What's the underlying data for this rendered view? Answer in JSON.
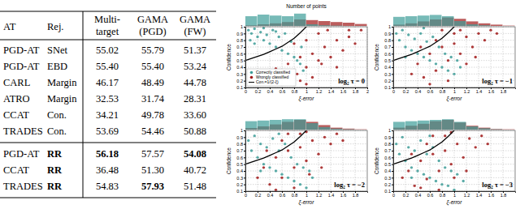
{
  "table": {
    "header": [
      [
        "AT"
      ],
      [
        "Rej."
      ],
      [
        "Multi-",
        "target"
      ],
      [
        "GAMA",
        "(PGD)"
      ],
      [
        "GAMA",
        "(FW)"
      ]
    ],
    "sections": [
      [
        [
          "PGD-AT",
          "SNet",
          "55.02",
          "55.79",
          "51.37"
        ],
        [
          "PGD-AT",
          "EBD",
          "55.40",
          "55.40",
          "53.24"
        ],
        [
          "CARL",
          "Margin",
          "46.17",
          "48.49",
          "44.78"
        ],
        [
          "ATRO",
          "Margin",
          "32.53",
          "31.74",
          "28.31"
        ],
        [
          "CCAT",
          "Con.",
          "34.21",
          "49.78",
          "33.60"
        ],
        [
          "TRADES",
          "Con.",
          "53.69",
          "54.46",
          "50.88"
        ]
      ],
      [
        [
          "PGD-AT",
          {
            "text": "RR",
            "bold": true
          },
          {
            "text": "56.18",
            "bold": true
          },
          "57.57",
          {
            "text": "54.08",
            "bold": true
          }
        ],
        [
          "CCAT",
          {
            "text": "RR",
            "bold": true
          },
          "36.48",
          "51.30",
          "40.72"
        ],
        [
          "TRADES",
          {
            "text": "RR",
            "bold": true
          },
          "54.83",
          {
            "text": "57.93",
            "bold": true
          },
          "51.48"
        ]
      ]
    ]
  },
  "chart_data": [
    {
      "type": "scatter",
      "title": "log₂ τ = 0",
      "xlabel": "ξ-error",
      "ylabel": "Confidence",
      "hist_title": "Number of points",
      "xlim": [
        0,
        2
      ],
      "ylim": [
        0.1,
        1
      ],
      "xticks": [
        0,
        0.2,
        0.4,
        0.6,
        0.8,
        1,
        1.2,
        1.4,
        1.6,
        1.8,
        2
      ],
      "yticks": [
        0.1,
        0.2,
        0.3,
        0.4,
        0.5,
        0.6,
        0.7,
        0.8,
        0.9,
        1
      ],
      "grid": true,
      "legend": "lower left",
      "hist_bins": [
        0,
        0.2,
        0.4,
        0.6,
        0.8,
        1,
        1.2,
        1.4,
        1.6,
        1.8,
        2
      ],
      "hist_ylim": [
        0,
        40
      ],
      "series": [
        {
          "name": "Correctly classified",
          "color": "#3d9c98",
          "marker": "circle",
          "x": [
            0.05,
            0.1,
            0.15,
            0.2,
            0.25,
            0.3,
            0.35,
            0.4,
            0.45,
            0.5,
            0.55,
            0.6,
            0.65,
            0.7,
            0.75,
            0.8,
            0.85,
            0.9,
            0.92,
            0.95,
            0.15,
            0.3,
            0.5,
            0.08
          ],
          "values": [
            0.95,
            0.9,
            0.97,
            0.85,
            0.92,
            0.8,
            0.88,
            0.75,
            0.95,
            0.7,
            0.85,
            0.65,
            0.9,
            0.6,
            0.78,
            0.55,
            0.5,
            0.45,
            0.7,
            0.35,
            0.75,
            0.98,
            0.93,
            0.8
          ],
          "hist_counts": [
            30,
            35,
            32,
            30,
            38,
            5,
            2,
            1,
            0,
            0
          ]
        },
        {
          "name": "Wrongly classified",
          "color": "#a01818",
          "marker": "circle",
          "x": [
            0.9,
            0.5,
            1.0,
            0.7,
            0.85,
            0.9,
            1.0,
            1.1,
            1.2,
            1.3,
            1.4,
            1.5,
            1.6,
            1.7,
            1.8,
            1.9,
            1.2,
            1.0,
            0.8,
            1.5,
            1.1,
            1.25,
            1.7,
            1.35
          ],
          "values": [
            0.2,
            0.38,
            0.15,
            0.45,
            0.3,
            0.55,
            0.4,
            0.6,
            0.5,
            0.7,
            0.55,
            0.8,
            0.65,
            0.85,
            0.75,
            0.95,
            0.9,
            0.8,
            0.75,
            0.4,
            0.25,
            0.45,
            0.95,
            0.95
          ],
          "hist_counts": [
            2,
            5,
            8,
            12,
            20,
            18,
            15,
            12,
            10,
            6
          ]
        },
        {
          "name": "Con.=1/(2-ξ)",
          "type": "line",
          "color": "#000000",
          "line_style": "solid",
          "x": [
            0,
            0.1,
            0.2,
            0.3,
            0.4,
            0.5,
            0.6,
            0.7,
            0.8,
            0.9,
            1
          ],
          "values": [
            0.5,
            0.53,
            0.56,
            0.59,
            0.63,
            0.67,
            0.71,
            0.77,
            0.83,
            0.91,
            1
          ]
        }
      ]
    },
    {
      "type": "scatter",
      "title": "log₂ τ = −1",
      "xlabel": "ξ-error",
      "ylabel": "Confidence",
      "xlim": [
        0,
        2
      ],
      "ylim": [
        0.1,
        1
      ],
      "xticks": [
        0,
        0.2,
        0.4,
        0.6,
        0.8,
        1,
        1.2,
        1.4,
        1.6,
        1.8
      ],
      "yticks": [
        0.1,
        0.2,
        0.3,
        0.4,
        0.5,
        0.6,
        0.7,
        0.8,
        0.9,
        1
      ],
      "grid": true,
      "hist_bins": [
        0,
        0.2,
        0.4,
        0.6,
        0.8,
        1,
        1.2,
        1.4,
        1.6,
        1.8,
        2
      ],
      "hist_ylim": [
        0,
        40
      ],
      "series": [
        {
          "name": "Correctly classified",
          "color": "#3d9c98",
          "marker": "circle",
          "x": [
            0.05,
            0.1,
            0.15,
            0.2,
            0.25,
            0.3,
            0.35,
            0.4,
            0.45,
            0.5,
            0.55,
            0.6,
            0.65,
            0.7,
            0.75,
            0.8,
            0.85,
            0.9,
            0.95,
            1.0,
            1.05,
            0.2,
            0.5,
            1.1
          ],
          "values": [
            0.9,
            0.8,
            0.95,
            0.7,
            0.88,
            0.65,
            0.82,
            0.6,
            0.9,
            0.55,
            0.78,
            0.5,
            0.85,
            0.45,
            0.7,
            0.4,
            0.6,
            0.35,
            0.55,
            0.3,
            0.5,
            0.55,
            0.98,
            0.4
          ],
          "hist_counts": [
            28,
            30,
            32,
            34,
            30,
            15,
            5,
            2,
            0,
            0
          ]
        },
        {
          "name": "Wrongly classified",
          "color": "#a01818",
          "marker": "circle",
          "x": [
            0.3,
            0.4,
            0.5,
            0.6,
            0.7,
            0.8,
            0.9,
            1.0,
            1.1,
            1.2,
            1.3,
            1.4,
            1.5,
            1.6,
            0.9,
            1.0,
            0.7,
            1.2,
            0.6,
            1.1,
            0.45,
            1.35,
            0.8,
            1.7
          ],
          "values": [
            0.3,
            0.45,
            0.25,
            0.6,
            0.35,
            0.7,
            0.5,
            0.75,
            0.6,
            0.85,
            0.7,
            0.9,
            0.8,
            0.95,
            0.2,
            0.9,
            0.8,
            0.45,
            0.15,
            0.95,
            0.7,
            0.55,
            0.95,
            0.9
          ],
          "hist_counts": [
            4,
            8,
            14,
            20,
            26,
            22,
            14,
            8,
            4,
            1
          ]
        },
        {
          "name": "Con.=1/(2-ξ)",
          "type": "line",
          "color": "#000000",
          "line_style": "solid",
          "x": [
            0,
            0.1,
            0.2,
            0.3,
            0.4,
            0.5,
            0.6,
            0.7,
            0.8,
            0.9,
            1
          ],
          "values": [
            0.5,
            0.53,
            0.56,
            0.59,
            0.63,
            0.67,
            0.71,
            0.77,
            0.83,
            0.91,
            1
          ]
        }
      ]
    },
    {
      "type": "scatter",
      "title": "log₂ τ = −2",
      "xlabel": "ξ-error",
      "ylabel": "Confidence",
      "xlim": [
        0,
        2
      ],
      "ylim": [
        0.1,
        1
      ],
      "xticks": [
        0,
        0.2,
        0.4,
        0.6,
        0.8,
        1,
        1.2,
        1.4,
        1.6,
        1.8
      ],
      "yticks": [
        0.1,
        0.2,
        0.3,
        0.4,
        0.5,
        0.6,
        0.7,
        0.8,
        0.9,
        1
      ],
      "grid": true,
      "hist_bins": [
        0,
        0.2,
        0.4,
        0.6,
        0.8,
        1,
        1.2,
        1.4,
        1.6,
        1.8,
        2
      ],
      "hist_ylim": [
        0,
        40
      ],
      "series": [
        {
          "name": "Correctly classified",
          "color": "#3d9c98",
          "marker": "circle",
          "x": [
            0.05,
            0.1,
            0.15,
            0.2,
            0.25,
            0.3,
            0.35,
            0.4,
            0.45,
            0.5,
            0.55,
            0.6,
            0.65,
            0.7,
            0.75,
            0.8,
            0.85,
            0.9,
            0.95,
            1.0,
            1.05,
            0.25,
            0.55,
            1.1
          ],
          "values": [
            0.85,
            0.7,
            0.92,
            0.6,
            0.8,
            0.5,
            0.75,
            0.45,
            0.88,
            0.4,
            0.7,
            0.35,
            0.8,
            0.3,
            0.6,
            0.25,
            0.5,
            0.2,
            0.45,
            0.15,
            0.4,
            0.4,
            0.95,
            0.3
          ],
          "hist_counts": [
            26,
            28,
            30,
            32,
            32,
            20,
            8,
            3,
            1,
            0
          ]
        },
        {
          "name": "Wrongly classified",
          "color": "#a01818",
          "marker": "circle",
          "x": [
            0.2,
            0.3,
            0.4,
            0.5,
            0.6,
            0.7,
            0.8,
            0.9,
            1.0,
            1.1,
            1.2,
            1.3,
            1.4,
            1.5,
            0.8,
            0.9,
            0.6,
            1.05,
            0.5,
            1.0,
            0.35,
            1.25,
            0.7,
            1.6
          ],
          "values": [
            0.3,
            0.45,
            0.2,
            0.6,
            0.3,
            0.7,
            0.45,
            0.75,
            0.55,
            0.85,
            0.65,
            0.9,
            0.8,
            0.95,
            0.15,
            0.95,
            0.85,
            0.35,
            0.12,
            0.98,
            0.7,
            0.45,
            0.95,
            0.85
          ],
          "hist_counts": [
            5,
            10,
            16,
            24,
            30,
            24,
            14,
            6,
            3,
            1
          ]
        },
        {
          "name": "Con.=1/(2-ξ)",
          "type": "line",
          "color": "#000000",
          "line_style": "solid",
          "x": [
            0,
            0.1,
            0.2,
            0.3,
            0.4,
            0.5,
            0.6,
            0.7,
            0.8,
            0.9,
            1
          ],
          "values": [
            0.5,
            0.53,
            0.56,
            0.59,
            0.63,
            0.67,
            0.71,
            0.77,
            0.83,
            0.91,
            1
          ]
        }
      ]
    },
    {
      "type": "scatter",
      "title": "log₂ τ = −3",
      "xlabel": "ξ-error",
      "ylabel": "Confidence",
      "xlim": [
        0,
        2
      ],
      "ylim": [
        0.1,
        1
      ],
      "xticks": [
        0,
        0.2,
        0.4,
        0.6,
        0.8,
        1,
        1.2,
        1.4,
        1.6,
        1.8
      ],
      "yticks": [
        0.1,
        0.2,
        0.3,
        0.4,
        0.5,
        0.6,
        0.7,
        0.8,
        0.9,
        1
      ],
      "grid": true,
      "hist_bins": [
        0,
        0.2,
        0.4,
        0.6,
        0.8,
        1,
        1.2,
        1.4,
        1.6,
        1.8,
        2
      ],
      "hist_ylim": [
        0,
        40
      ],
      "series": [
        {
          "name": "Correctly classified",
          "color": "#3d9c98",
          "marker": "circle",
          "x": [
            0.05,
            0.1,
            0.15,
            0.2,
            0.25,
            0.3,
            0.35,
            0.4,
            0.45,
            0.5,
            0.55,
            0.6,
            0.65,
            0.7,
            0.75,
            0.8,
            0.85,
            0.9,
            0.95,
            1.0,
            1.05,
            0.3,
            0.6,
            1.15
          ],
          "values": [
            0.8,
            0.65,
            0.9,
            0.55,
            0.75,
            0.45,
            0.7,
            0.4,
            0.85,
            0.35,
            0.65,
            0.3,
            0.75,
            0.25,
            0.55,
            0.2,
            0.45,
            0.18,
            0.4,
            0.12,
            0.35,
            0.3,
            0.92,
            0.25
          ],
          "hist_counts": [
            24,
            26,
            28,
            30,
            32,
            24,
            10,
            4,
            1,
            0
          ]
        },
        {
          "name": "Wrongly classified",
          "color": "#a01818",
          "marker": "circle",
          "x": [
            0.15,
            0.25,
            0.35,
            0.45,
            0.55,
            0.65,
            0.75,
            0.85,
            0.95,
            1.05,
            1.15,
            1.25,
            1.35,
            1.45,
            0.75,
            0.85,
            0.55,
            1.0,
            0.45,
            0.95,
            0.3,
            1.2,
            0.65,
            1.55
          ],
          "values": [
            0.3,
            0.4,
            0.18,
            0.55,
            0.28,
            0.65,
            0.4,
            0.7,
            0.5,
            0.8,
            0.6,
            0.88,
            0.75,
            0.92,
            0.12,
            0.92,
            0.8,
            0.3,
            0.15,
            0.97,
            0.65,
            0.4,
            0.92,
            0.8
          ],
          "hist_counts": [
            6,
            12,
            18,
            26,
            30,
            22,
            12,
            6,
            2,
            1
          ]
        },
        {
          "name": "Con.=1/(2-ξ)",
          "type": "line",
          "color": "#000000",
          "line_style": "solid",
          "x": [
            0,
            0.1,
            0.2,
            0.3,
            0.4,
            0.5,
            0.6,
            0.7,
            0.8,
            0.9,
            1
          ],
          "values": [
            0.5,
            0.53,
            0.56,
            0.59,
            0.63,
            0.67,
            0.71,
            0.77,
            0.83,
            0.91,
            1
          ]
        }
      ]
    }
  ]
}
